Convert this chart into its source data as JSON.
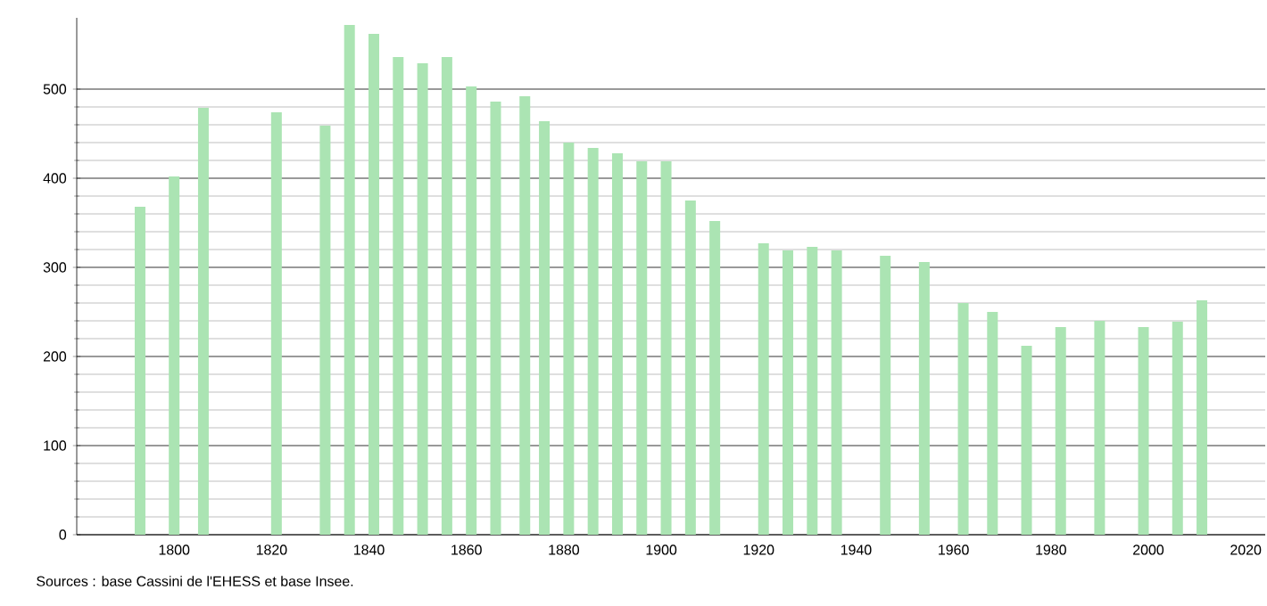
{
  "chart_data": {
    "type": "bar",
    "x": [
      1793,
      1800,
      1806,
      1821,
      1831,
      1836,
      1841,
      1846,
      1851,
      1856,
      1861,
      1866,
      1872,
      1876,
      1881,
      1886,
      1891,
      1896,
      1901,
      1906,
      1911,
      1921,
      1926,
      1931,
      1936,
      1946,
      1954,
      1962,
      1968,
      1975,
      1982,
      1990,
      1999,
      2006,
      2011
    ],
    "values": [
      368,
      402,
      479,
      474,
      459,
      572,
      562,
      536,
      529,
      536,
      503,
      486,
      492,
      464,
      440,
      434,
      428,
      419,
      419,
      375,
      352,
      327,
      319,
      323,
      319,
      313,
      306,
      260,
      250,
      212,
      233,
      240,
      233,
      239,
      263
    ],
    "color": "#abe4b3",
    "xlim": [
      1780,
      2024
    ],
    "xticks": [
      1800,
      1820,
      1840,
      1860,
      1880,
      1900,
      1920,
      1940,
      1960,
      1980,
      2000,
      2020
    ],
    "ylim": [
      0,
      580
    ],
    "yticks": [
      0,
      100,
      200,
      300,
      400,
      500
    ],
    "grid": "y",
    "annotations": [
      "Sources : base Cassini de l'EHESS et base Insee."
    ]
  }
}
